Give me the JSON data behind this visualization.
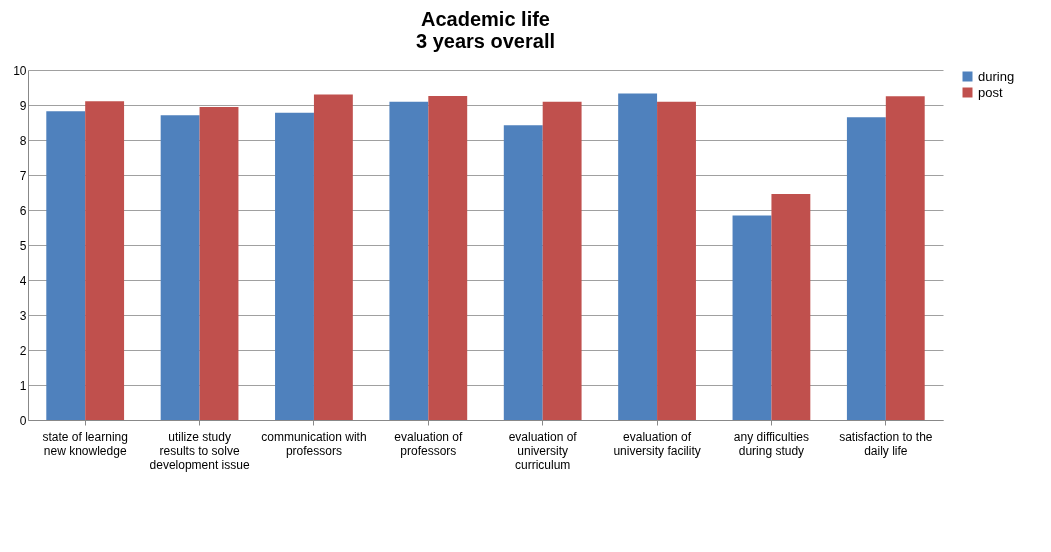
{
  "chart_data": {
    "type": "bar",
    "title": "Academic life\n3 years overall",
    "categories": [
      "state of learning new knowledge",
      "utilize study results to solve development issue",
      "communication with professors",
      "evaluation of professors",
      "evaluation of university curriculum",
      "evaluation of university facility",
      "any difficulties during study",
      "satisfaction to the daily life"
    ],
    "series": [
      {
        "name": "during",
        "color": "#4f81bd",
        "values": [
          8.82,
          8.71,
          8.78,
          9.09,
          8.42,
          9.33,
          5.84,
          8.65
        ]
      },
      {
        "name": "post",
        "color": "#c0504d",
        "values": [
          9.11,
          8.94,
          9.3,
          9.26,
          9.09,
          9.09,
          6.46,
          9.25
        ]
      }
    ],
    "ylim": [
      0,
      10
    ],
    "yticks": [
      0,
      1,
      2,
      3,
      4,
      5,
      6,
      7,
      8,
      9,
      10
    ],
    "grid": true,
    "legend": "right"
  }
}
